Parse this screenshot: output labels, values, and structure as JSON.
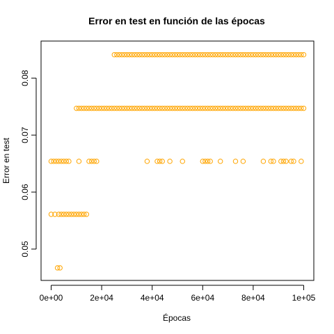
{
  "chart_data": {
    "type": "scatter",
    "title": "Error en test en función de las épocas",
    "xlabel": "Épocas",
    "ylabel": "Error en test",
    "xlim": [
      -4000,
      104000
    ],
    "ylim": [
      0.0445,
      0.0865
    ],
    "x_ticks": [
      0,
      20000,
      40000,
      60000,
      80000,
      100000
    ],
    "x_tick_labels": [
      "0e+00",
      "2e+04",
      "4e+04",
      "6e+04",
      "8e+04",
      "1e+05"
    ],
    "y_ticks": [
      0.05,
      0.06,
      0.07,
      0.08
    ],
    "y_tick_labels": [
      "0.05",
      "0.06",
      "0.07",
      "0.08"
    ],
    "grid": false,
    "marker": "open-circle",
    "color": "#FFA500",
    "levels": [
      {
        "y": 0.0467,
        "x_ranges": [
          [
            2500,
            3500
          ]
        ],
        "x_points": []
      },
      {
        "y": 0.0561,
        "x_ranges": [
          [
            3000,
            14500
          ]
        ],
        "x_points": [
          0,
          1500
        ]
      },
      {
        "y": 0.0654,
        "x_ranges": [
          [
            0,
            7000
          ],
          [
            15000,
            18500
          ]
        ],
        "x_points": [
          11000,
          38000,
          42000,
          43000,
          44000,
          47000,
          52000,
          60000,
          61000,
          62000,
          63000,
          67000,
          73000,
          76000,
          84000,
          87000,
          88000,
          91000,
          92000,
          93000,
          95000,
          96000,
          99000
        ]
      },
      {
        "y": 0.0747,
        "x_ranges": [
          [
            10000,
            100000
          ]
        ],
        "x_points": []
      },
      {
        "y": 0.0841,
        "x_ranges": [
          [
            25000,
            100000
          ]
        ],
        "x_points": []
      }
    ]
  }
}
